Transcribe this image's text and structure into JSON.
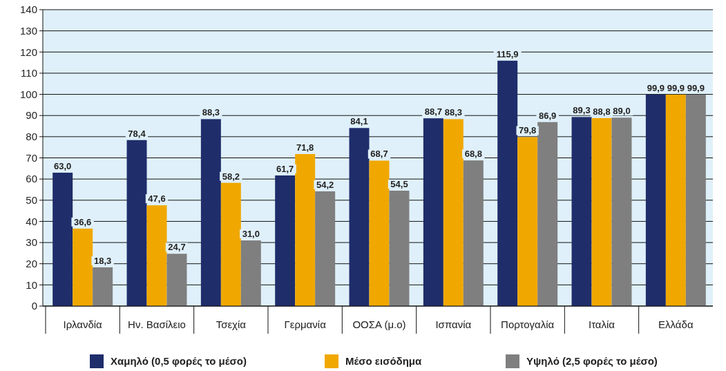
{
  "chart_data": {
    "type": "bar",
    "categories": [
      "Ιρλανδία",
      "Ην. Βασίλειο",
      "Τσεχία",
      "Γερμανία",
      "ΟΟΣΑ (μ.ο)",
      "Ισπανία",
      "Πορτογαλία",
      "Ιταλία",
      "Ελλάδα"
    ],
    "series": [
      {
        "name": "Χαμηλό (0,5 φορές το μέσο)",
        "color": "#1f2d6b",
        "values": [
          63.0,
          78.4,
          88.3,
          61.7,
          84.1,
          88.7,
          115.9,
          89.3,
          99.9
        ],
        "value_labels": [
          "63,0",
          "78,4",
          "88,3",
          "61,7",
          "84,1",
          "88,7",
          "115,9",
          "89,3",
          "99,9"
        ]
      },
      {
        "name": "Μέσο εισόδημα",
        "color": "#f0a800",
        "values": [
          36.6,
          47.6,
          58.2,
          71.8,
          68.7,
          88.3,
          79.8,
          88.8,
          99.9
        ],
        "value_labels": [
          "36,6",
          "47,6",
          "58,2",
          "71,8",
          "68,7",
          "88,3",
          "79,8",
          "88,8",
          "99,9"
        ]
      },
      {
        "name": "Υψηλό (2,5 φορές το μέσο)",
        "color": "#7f7f7f",
        "values": [
          18.3,
          24.7,
          31.0,
          54.2,
          54.5,
          68.8,
          86.9,
          89.0,
          99.9
        ],
        "value_labels": [
          "18,3",
          "24,7",
          "31,0",
          "54,2",
          "54,5",
          "68,8",
          "86,9",
          "89,0",
          "99,9"
        ]
      }
    ],
    "ylim": [
      0,
      140
    ],
    "yticks": [
      0,
      10,
      20,
      30,
      40,
      50,
      60,
      70,
      80,
      90,
      100,
      110,
      120,
      130,
      140
    ],
    "grid": "y",
    "legend": "bottom"
  }
}
